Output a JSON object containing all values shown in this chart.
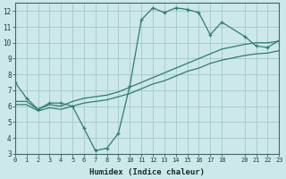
{
  "xlabel": "Humidex (Indice chaleur)",
  "bg_color": "#cce8e8",
  "grid_color": "#aacccc",
  "line_color": "#2e7d6e",
  "ylim": [
    3,
    12.5
  ],
  "xlim": [
    0,
    23
  ],
  "yticks": [
    3,
    4,
    5,
    6,
    7,
    8,
    9,
    10,
    11,
    12
  ],
  "xticks": [
    0,
    1,
    2,
    3,
    4,
    5,
    6,
    7,
    8,
    9,
    10,
    11,
    12,
    13,
    14,
    15,
    16,
    17,
    18,
    20,
    21,
    22,
    23
  ],
  "line1_x": [
    0,
    1,
    2,
    3,
    4,
    5,
    6,
    7,
    8,
    9,
    10,
    11,
    12,
    13,
    14,
    15,
    16,
    17,
    18,
    20,
    21,
    22,
    23
  ],
  "line1_y": [
    7.5,
    6.5,
    5.8,
    6.2,
    6.2,
    6.0,
    4.6,
    3.2,
    3.35,
    4.3,
    7.3,
    11.45,
    12.2,
    11.9,
    12.2,
    12.1,
    11.9,
    10.5,
    11.3,
    10.4,
    9.8,
    9.7,
    10.15
  ],
  "line2_x": [
    0,
    1,
    2,
    3,
    4,
    5,
    6,
    7,
    8,
    9,
    10,
    11,
    12,
    13,
    14,
    15,
    16,
    17,
    18,
    20,
    21,
    22,
    23
  ],
  "line2_y": [
    6.3,
    6.3,
    5.8,
    6.1,
    6.0,
    6.3,
    6.5,
    6.6,
    6.7,
    6.9,
    7.2,
    7.5,
    7.8,
    8.1,
    8.4,
    8.7,
    9.0,
    9.3,
    9.6,
    9.9,
    10.0,
    10.0,
    10.1
  ],
  "line3_x": [
    0,
    1,
    2,
    3,
    4,
    5,
    6,
    7,
    8,
    9,
    10,
    11,
    12,
    13,
    14,
    15,
    16,
    17,
    18,
    20,
    21,
    22,
    23
  ],
  "line3_y": [
    6.1,
    6.1,
    5.7,
    5.9,
    5.8,
    6.0,
    6.2,
    6.3,
    6.4,
    6.6,
    6.8,
    7.1,
    7.4,
    7.6,
    7.9,
    8.2,
    8.4,
    8.7,
    8.9,
    9.2,
    9.3,
    9.35,
    9.5
  ]
}
